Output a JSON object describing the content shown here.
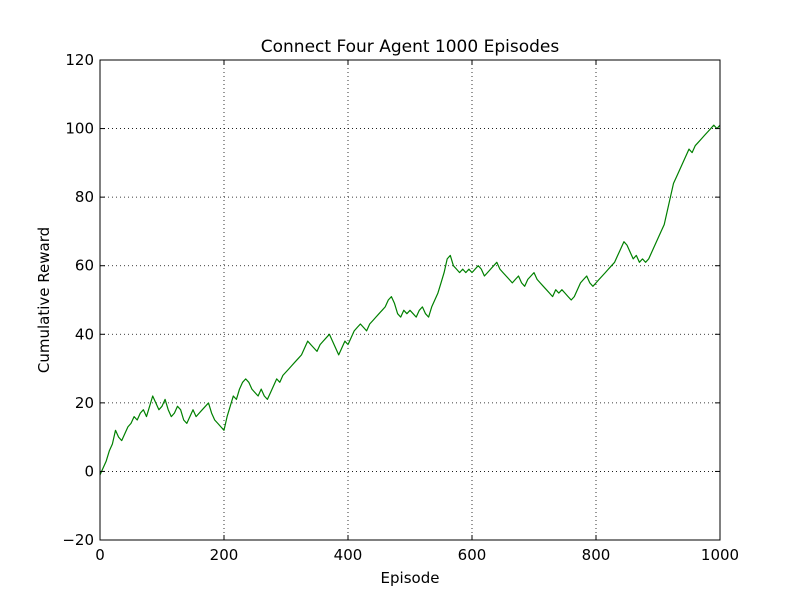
{
  "chart_data": {
    "type": "line",
    "title": "Connect Four Agent 1000 Episodes",
    "xlabel": "Episode",
    "ylabel": "Cumulative Reward",
    "xlim": [
      0,
      1000
    ],
    "ylim": [
      -20,
      120
    ],
    "xticks": [
      0,
      200,
      400,
      600,
      800,
      1000
    ],
    "yticks": [
      -20,
      0,
      20,
      40,
      60,
      80,
      100,
      120
    ],
    "xtick_labels": [
      "0",
      "200",
      "400",
      "600",
      "800",
      "1000"
    ],
    "ytick_labels": [
      "−20",
      "0",
      "20",
      "40",
      "60",
      "80",
      "100",
      "120"
    ],
    "grid": true,
    "line_color": "#008000",
    "series": [
      {
        "x": [
          0,
          5,
          10,
          15,
          20,
          25,
          30,
          35,
          40,
          45,
          50,
          55,
          60,
          65,
          70,
          75,
          80,
          85,
          90,
          95,
          100,
          105,
          110,
          115,
          120,
          125,
          130,
          135,
          140,
          145,
          150,
          155,
          160,
          165,
          170,
          175,
          180,
          185,
          190,
          195,
          200,
          205,
          210,
          215,
          220,
          225,
          230,
          235,
          240,
          245,
          250,
          255,
          260,
          265,
          270,
          275,
          280,
          285,
          290,
          295,
          300,
          305,
          310,
          315,
          320,
          325,
          330,
          335,
          340,
          345,
          350,
          355,
          360,
          365,
          370,
          375,
          380,
          385,
          390,
          395,
          400,
          405,
          410,
          415,
          420,
          425,
          430,
          435,
          440,
          445,
          450,
          455,
          460,
          465,
          470,
          475,
          480,
          485,
          490,
          495,
          500,
          505,
          510,
          515,
          520,
          525,
          530,
          535,
          540,
          545,
          550,
          555,
          560,
          565,
          570,
          575,
          580,
          585,
          590,
          595,
          600,
          605,
          610,
          615,
          620,
          625,
          630,
          635,
          640,
          645,
          650,
          655,
          660,
          665,
          670,
          675,
          680,
          685,
          690,
          695,
          700,
          705,
          710,
          715,
          720,
          725,
          730,
          735,
          740,
          745,
          750,
          755,
          760,
          765,
          770,
          775,
          780,
          785,
          790,
          795,
          800,
          805,
          810,
          815,
          820,
          825,
          830,
          835,
          840,
          845,
          850,
          855,
          860,
          865,
          870,
          875,
          880,
          885,
          890,
          895,
          900,
          905,
          910,
          915,
          920,
          925,
          930,
          935,
          940,
          945,
          950,
          955,
          960,
          965,
          970,
          975,
          980,
          985,
          990,
          995,
          1000
        ],
        "y": [
          -1,
          1,
          3,
          6,
          8,
          12,
          10,
          9,
          11,
          13,
          14,
          16,
          15,
          17,
          18,
          16,
          19,
          22,
          20,
          18,
          19,
          21,
          18,
          16,
          17,
          19,
          18,
          15,
          14,
          16,
          18,
          16,
          17,
          18,
          19,
          20,
          17,
          15,
          14,
          13,
          12,
          16,
          19,
          22,
          21,
          24,
          26,
          27,
          26,
          24,
          23,
          22,
          24,
          22,
          21,
          23,
          25,
          27,
          26,
          28,
          29,
          30,
          31,
          32,
          33,
          34,
          36,
          38,
          37,
          36,
          35,
          37,
          38,
          39,
          40,
          38,
          36,
          34,
          36,
          38,
          37,
          39,
          41,
          42,
          43,
          42,
          41,
          43,
          44,
          45,
          46,
          47,
          48,
          50,
          51,
          49,
          46,
          45,
          47,
          46,
          47,
          46,
          45,
          47,
          48,
          46,
          45,
          48,
          50,
          52,
          55,
          58,
          62,
          63,
          60,
          59,
          58,
          59,
          58,
          59,
          58,
          59,
          60,
          59,
          57,
          58,
          59,
          60,
          61,
          59,
          58,
          57,
          56,
          55,
          56,
          57,
          55,
          54,
          56,
          57,
          58,
          56,
          55,
          54,
          53,
          52,
          51,
          53,
          52,
          53,
          52,
          51,
          50,
          51,
          53,
          55,
          56,
          57,
          55,
          54,
          55,
          56,
          57,
          58,
          59,
          60,
          61,
          63,
          65,
          67,
          66,
          64,
          62,
          63,
          61,
          62,
          61,
          62,
          64,
          66,
          68,
          70,
          72,
          76,
          80,
          84,
          86,
          88,
          90,
          92,
          94,
          93,
          95,
          96,
          97,
          98,
          99,
          100,
          101,
          100,
          101
        ]
      }
    ]
  }
}
